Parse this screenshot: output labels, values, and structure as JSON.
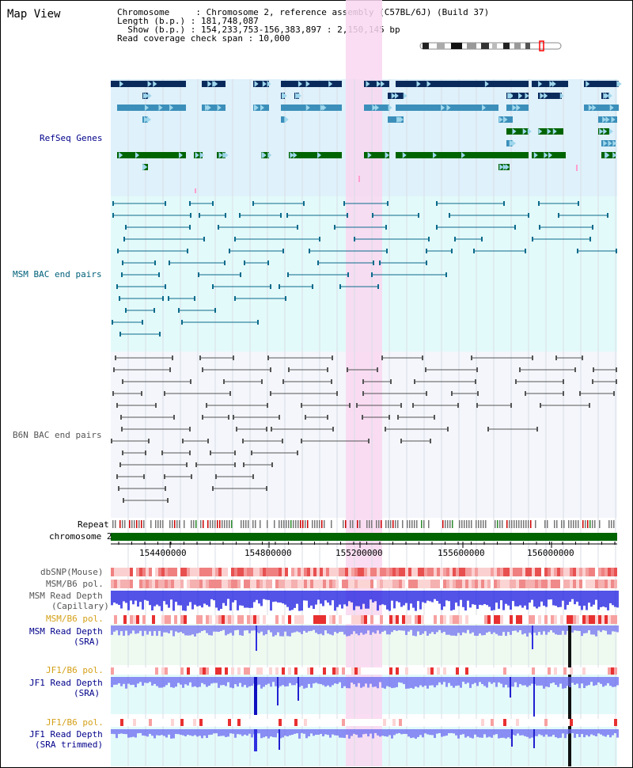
{
  "header": {
    "title": "Map View",
    "chromosome_line": "Chromosome     : Chromosome 2, reference assembly (C57BL/6J) (Build 37)",
    "length_line": "Length (b.p.) : 181,748,087",
    "show_line": "  Show (b.p.) : 154,233,753-156,383,897 : 2,150,145 bp",
    "coverage_line": "Read coverage check span : 10,000"
  },
  "tracks": {
    "refseq": "RefSeq Genes",
    "msm_bac": "MSM BAC end pairs",
    "b6n_bac": "B6N BAC end pairs",
    "repeat": "Repeat",
    "chromosome": "chromosome 2",
    "dbsnp": "dbSNP(Mouse)",
    "msm_b6_pol": "MSM/B6 pol.",
    "msm_depth_cap_1": "MSM Read Depth",
    "msm_depth_cap_2": "(Capillary)",
    "msm_b6_pol2": "MSM/B6 pol.",
    "msm_depth_sra_1": "MSM Read Depth",
    "msm_depth_sra_2": "(SRA)",
    "jf1_b6_pol": "JF1/B6 pol.",
    "jf1_depth_sra_1": "JF1 Read Depth",
    "jf1_depth_sra_2": "(SRA)",
    "jf1_b6_pol2": "JF1/B6 pol.",
    "jf1_depth_trim_1": "JF1 Read Depth",
    "jf1_depth_trim_2": "(SRA trimmed)"
  },
  "axis": {
    "ticks": [
      "154400000",
      "154800000",
      "155200000",
      "155600000",
      "156000000"
    ]
  },
  "colors": {
    "refseq_bg": "#dff1fb",
    "msm_bg": "#e3fafa",
    "b6n_bg": "#f4f6fb",
    "highlight": "#f9d7f0",
    "gene_dark": "#0a2a5c",
    "gene_mid": "#3b8fba",
    "gene_green": "#006400",
    "chromosome": "#006400"
  }
}
